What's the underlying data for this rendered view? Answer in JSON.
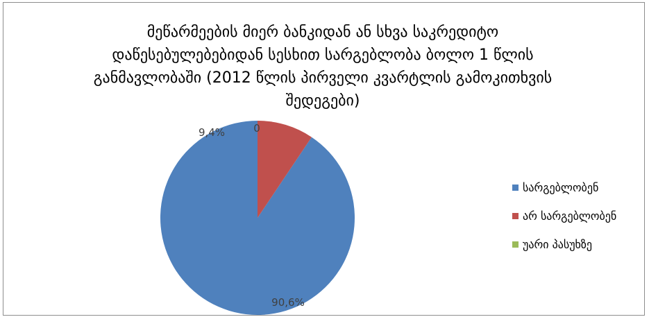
{
  "chart_data": {
    "type": "pie",
    "title": "მეწარმეების მიერ ბანკიდან ან სხვა საკრედიტო დაწესებულებებიდან სესხით სარგებლობა ბოლო 1 წლის განმავლობაში (2012 წლის პირველი კვარტლის გამოკითხვის შედეგები)",
    "title_lines": [
      "მეწარმეების მიერ ბანკიდან ან სხვა საკრედიტო",
      "დაწესებულებებიდან სესხით სარგებლობა ბოლო 1 წლის",
      "განმავლობაში (2012 წლის პირველი კვარტლის გამოკითხვის",
      "შედეგები)"
    ],
    "categories": [
      "სარგებლობენ",
      "არ სარგებლობენ",
      "უარი პასუხზე"
    ],
    "values": [
      90.6,
      9.4,
      0
    ],
    "data_labels": [
      "90,6%",
      "9,4%",
      "0"
    ],
    "colors": [
      "#4f81bd",
      "#c0504d",
      "#9bbb59"
    ],
    "legend_position": "right"
  }
}
